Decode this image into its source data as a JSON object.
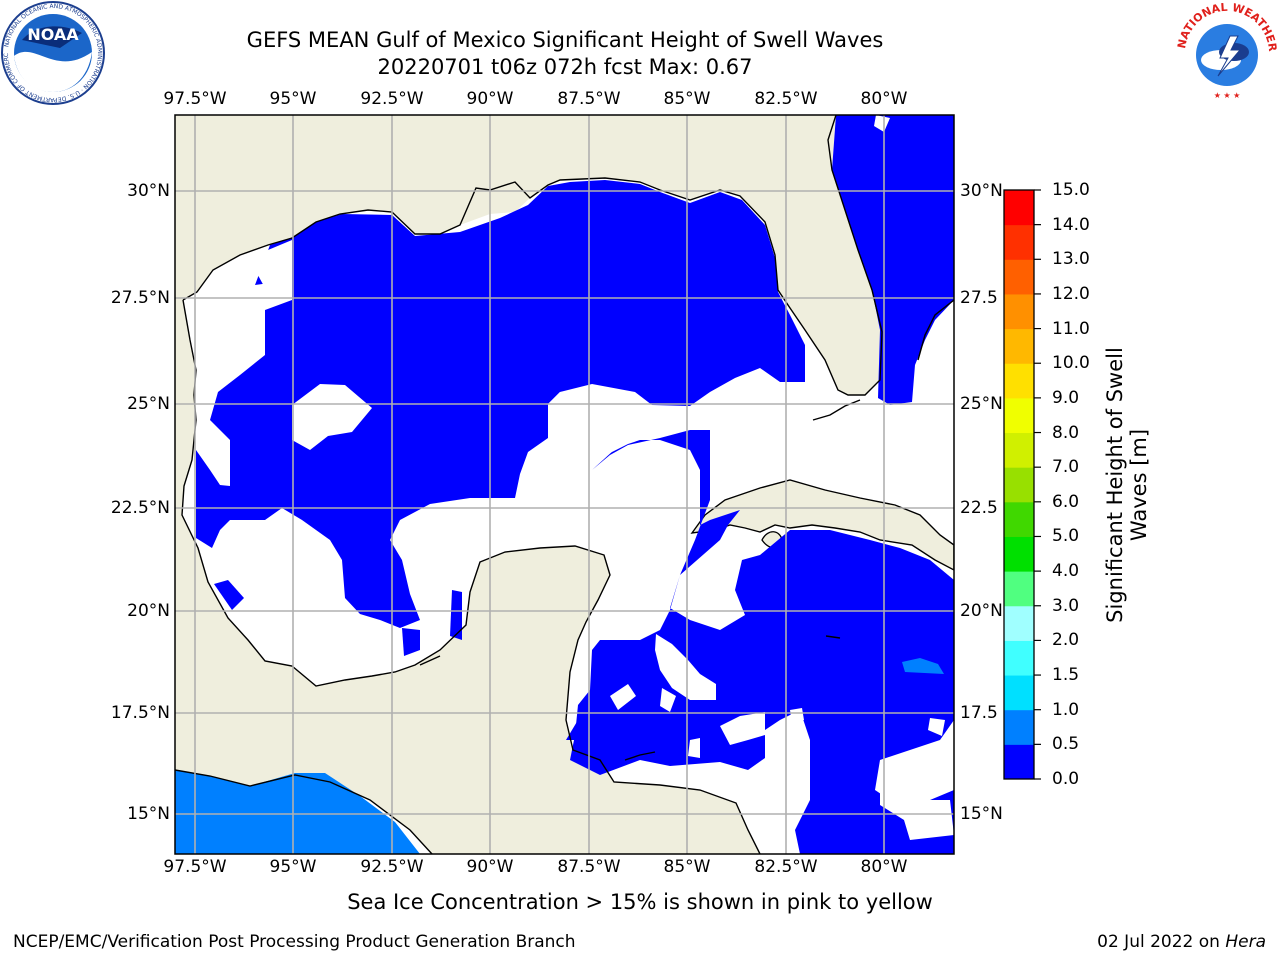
{
  "header": {
    "title": "GEFS MEAN Gulf of Mexico Significant Height of Swell Waves",
    "subtitle": "20220701 t06z 072h fcst   Max: 0.67"
  },
  "axes": {
    "lon_labels": [
      "97.5°W",
      "95°W",
      "92.5°W",
      "90°W",
      "87.5°W",
      "85°W",
      "82.5°W",
      "80°W"
    ],
    "lon_values": [
      -97.5,
      -95,
      -92.5,
      -90,
      -87.5,
      -85,
      -82.5,
      -80
    ],
    "lat_labels": [
      "30°N",
      "27.5°N",
      "25°N",
      "22.5°N",
      "20°N",
      "17.5°N",
      "15°N"
    ],
    "lat_values": [
      30,
      27.5,
      25,
      22.5,
      20,
      17.5,
      15
    ],
    "right_lat_labels": [
      "30°N",
      "27.5",
      "25°N",
      "22.5",
      "20°N",
      "17.5",
      "15°N"
    ],
    "lon_range": [
      -98,
      -78.2
    ],
    "lat_range": [
      14,
      31.6
    ],
    "grid": true
  },
  "colorbar": {
    "label": "Significant Height of Swell Waves [m]",
    "ticks": [
      "0.0",
      "0.5",
      "1.0",
      "1.5",
      "2.0",
      "3.0",
      "4.0",
      "5.0",
      "6.0",
      "7.0",
      "8.0",
      "9.0",
      "10.0",
      "11.0",
      "12.0",
      "13.0",
      "14.0",
      "15.0"
    ],
    "colors": [
      "#0000ff",
      "#0080ff",
      "#00e0ff",
      "#40ffff",
      "#a0ffff",
      "#50ff80",
      "#00e000",
      "#40d800",
      "#98e000",
      "#d0f000",
      "#f0ff00",
      "#ffe000",
      "#ffb800",
      "#ff9000",
      "#ff6000",
      "#ff3000",
      "#ff0000"
    ]
  },
  "colors": {
    "land": "#efeedd",
    "sea_low": "#0000ff",
    "sea_mid": "#0080ff",
    "no_data": "#ffffff",
    "grid": "#b0b0b0"
  },
  "note": "Sea Ice Concentration > 15% is shown in pink to yellow",
  "footer": {
    "left": "NCEP/EMC/Verification Post Processing Product Generation Branch",
    "date": "02 Jul 2022 on ",
    "host": "Hera"
  },
  "logos": {
    "noaa_text": "NOAA",
    "noaa_ring": "NATIONAL OCEANIC AND ATMOSPHERIC ADMINISTRATION · U.S. DEPARTMENT OF COMMERCE",
    "nws_ring": "NATIONAL WEATHER SERVICE"
  }
}
